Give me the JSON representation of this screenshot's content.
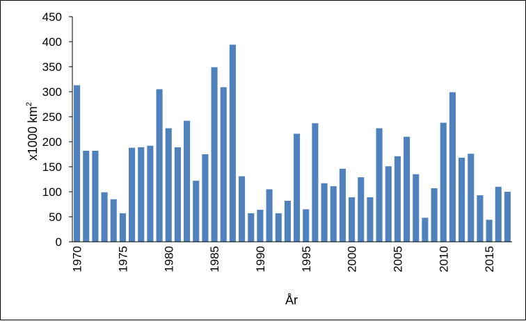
{
  "chart_data": {
    "type": "bar",
    "xlabel": "År",
    "ylabel": "x1000 km",
    "ylabel_superscript": "2",
    "ylim": [
      0,
      450
    ],
    "yticks": [
      0,
      50,
      100,
      150,
      200,
      250,
      300,
      350,
      400,
      450
    ],
    "xtick_labels": [
      "1970",
      "1975",
      "1980",
      "1985",
      "1990",
      "1995",
      "2000",
      "2005",
      "2010",
      "2015"
    ],
    "categories": [
      1970,
      1971,
      1972,
      1973,
      1974,
      1975,
      1976,
      1977,
      1978,
      1979,
      1980,
      1981,
      1982,
      1983,
      1984,
      1985,
      1986,
      1987,
      1988,
      1989,
      1990,
      1991,
      1992,
      1993,
      1994,
      1995,
      1996,
      1997,
      1998,
      1999,
      2000,
      2001,
      2002,
      2003,
      2004,
      2005,
      2006,
      2007,
      2008,
      2009,
      2010,
      2011,
      2012,
      2013,
      2014,
      2015,
      2016,
      2017
    ],
    "values": [
      313,
      182,
      182,
      99,
      85,
      57,
      188,
      189,
      192,
      305,
      227,
      189,
      242,
      122,
      175,
      349,
      309,
      394,
      131,
      57,
      64,
      105,
      57,
      82,
      216,
      65,
      237,
      117,
      111,
      146,
      89,
      129,
      89,
      227,
      151,
      171,
      210,
      135,
      48,
      107,
      238,
      299,
      168,
      176,
      93,
      44,
      110,
      100
    ],
    "bar_color": "#4f81bd",
    "grid": false,
    "legend": "none"
  }
}
